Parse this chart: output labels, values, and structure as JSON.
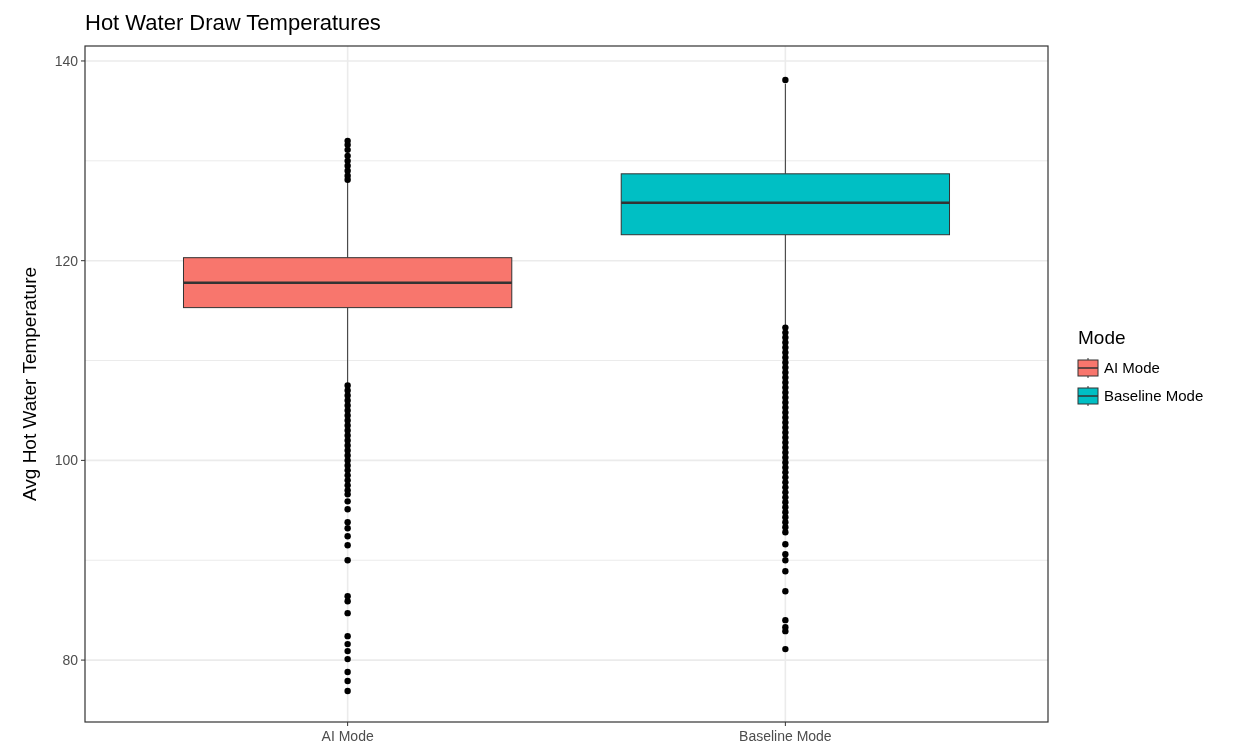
{
  "chart_data": {
    "type": "box",
    "title": "Hot Water Draw Temperatures",
    "ylabel": "Avg Hot Water Temperature",
    "legend_title": "Mode",
    "categories": [
      "AI Mode",
      "Baseline Mode"
    ],
    "series": [
      {
        "name": "AI Mode",
        "color": "#f8766d",
        "boxes": [
          {
            "low": 107.7,
            "q1": 115.3,
            "median": 117.8,
            "q3": 120.3,
            "high": 127.9,
            "outliers": [
              132.0,
              131.6,
              131.1,
              130.5,
              130.0,
              129.5,
              129.0,
              128.5,
              128.1,
              107.5,
              107.0,
              106.5,
              106.0,
              105.5,
              105.0,
              104.5,
              104.0,
              103.5,
              103.0,
              102.5,
              102.0,
              101.5,
              101.0,
              100.5,
              100.0,
              99.5,
              99.0,
              98.5,
              98.0,
              97.5,
              97.0,
              96.6,
              95.9,
              95.1,
              93.8,
              93.2,
              92.4,
              91.5,
              90.0,
              86.4,
              85.9,
              84.7,
              82.4,
              81.6,
              80.9,
              80.1,
              78.8,
              77.9,
              76.9
            ]
          },
          null
        ]
      },
      {
        "name": "Baseline Mode",
        "color": "#00bfc4",
        "boxes": [
          null,
          {
            "low": 113.5,
            "q1": 122.6,
            "median": 125.8,
            "q3": 128.7,
            "high": 137.7,
            "outliers": [
              138.1,
              113.3,
              112.8,
              112.3,
              111.8,
              111.3,
              110.8,
              110.3,
              109.8,
              109.3,
              108.8,
              108.3,
              107.8,
              107.3,
              106.8,
              106.3,
              105.8,
              105.3,
              104.8,
              104.3,
              103.8,
              103.3,
              102.8,
              102.3,
              101.8,
              101.3,
              100.8,
              100.3,
              99.8,
              99.3,
              98.8,
              98.3,
              97.8,
              97.3,
              96.8,
              96.3,
              95.8,
              95.3,
              94.8,
              94.3,
              93.8,
              93.3,
              92.8,
              91.6,
              90.6,
              90.0,
              88.9,
              86.9,
              84.0,
              83.3,
              82.9,
              81.1
            ]
          }
        ]
      }
    ],
    "ylim": [
      73.8,
      141.5
    ],
    "yticks": [
      80,
      {
        "value": 90,
        "label": null
      },
      100,
      {
        "value": 110,
        "label": null
      },
      120,
      {
        "value": 130,
        "label": null
      },
      140
    ],
    "grid": true,
    "legend": "right"
  }
}
